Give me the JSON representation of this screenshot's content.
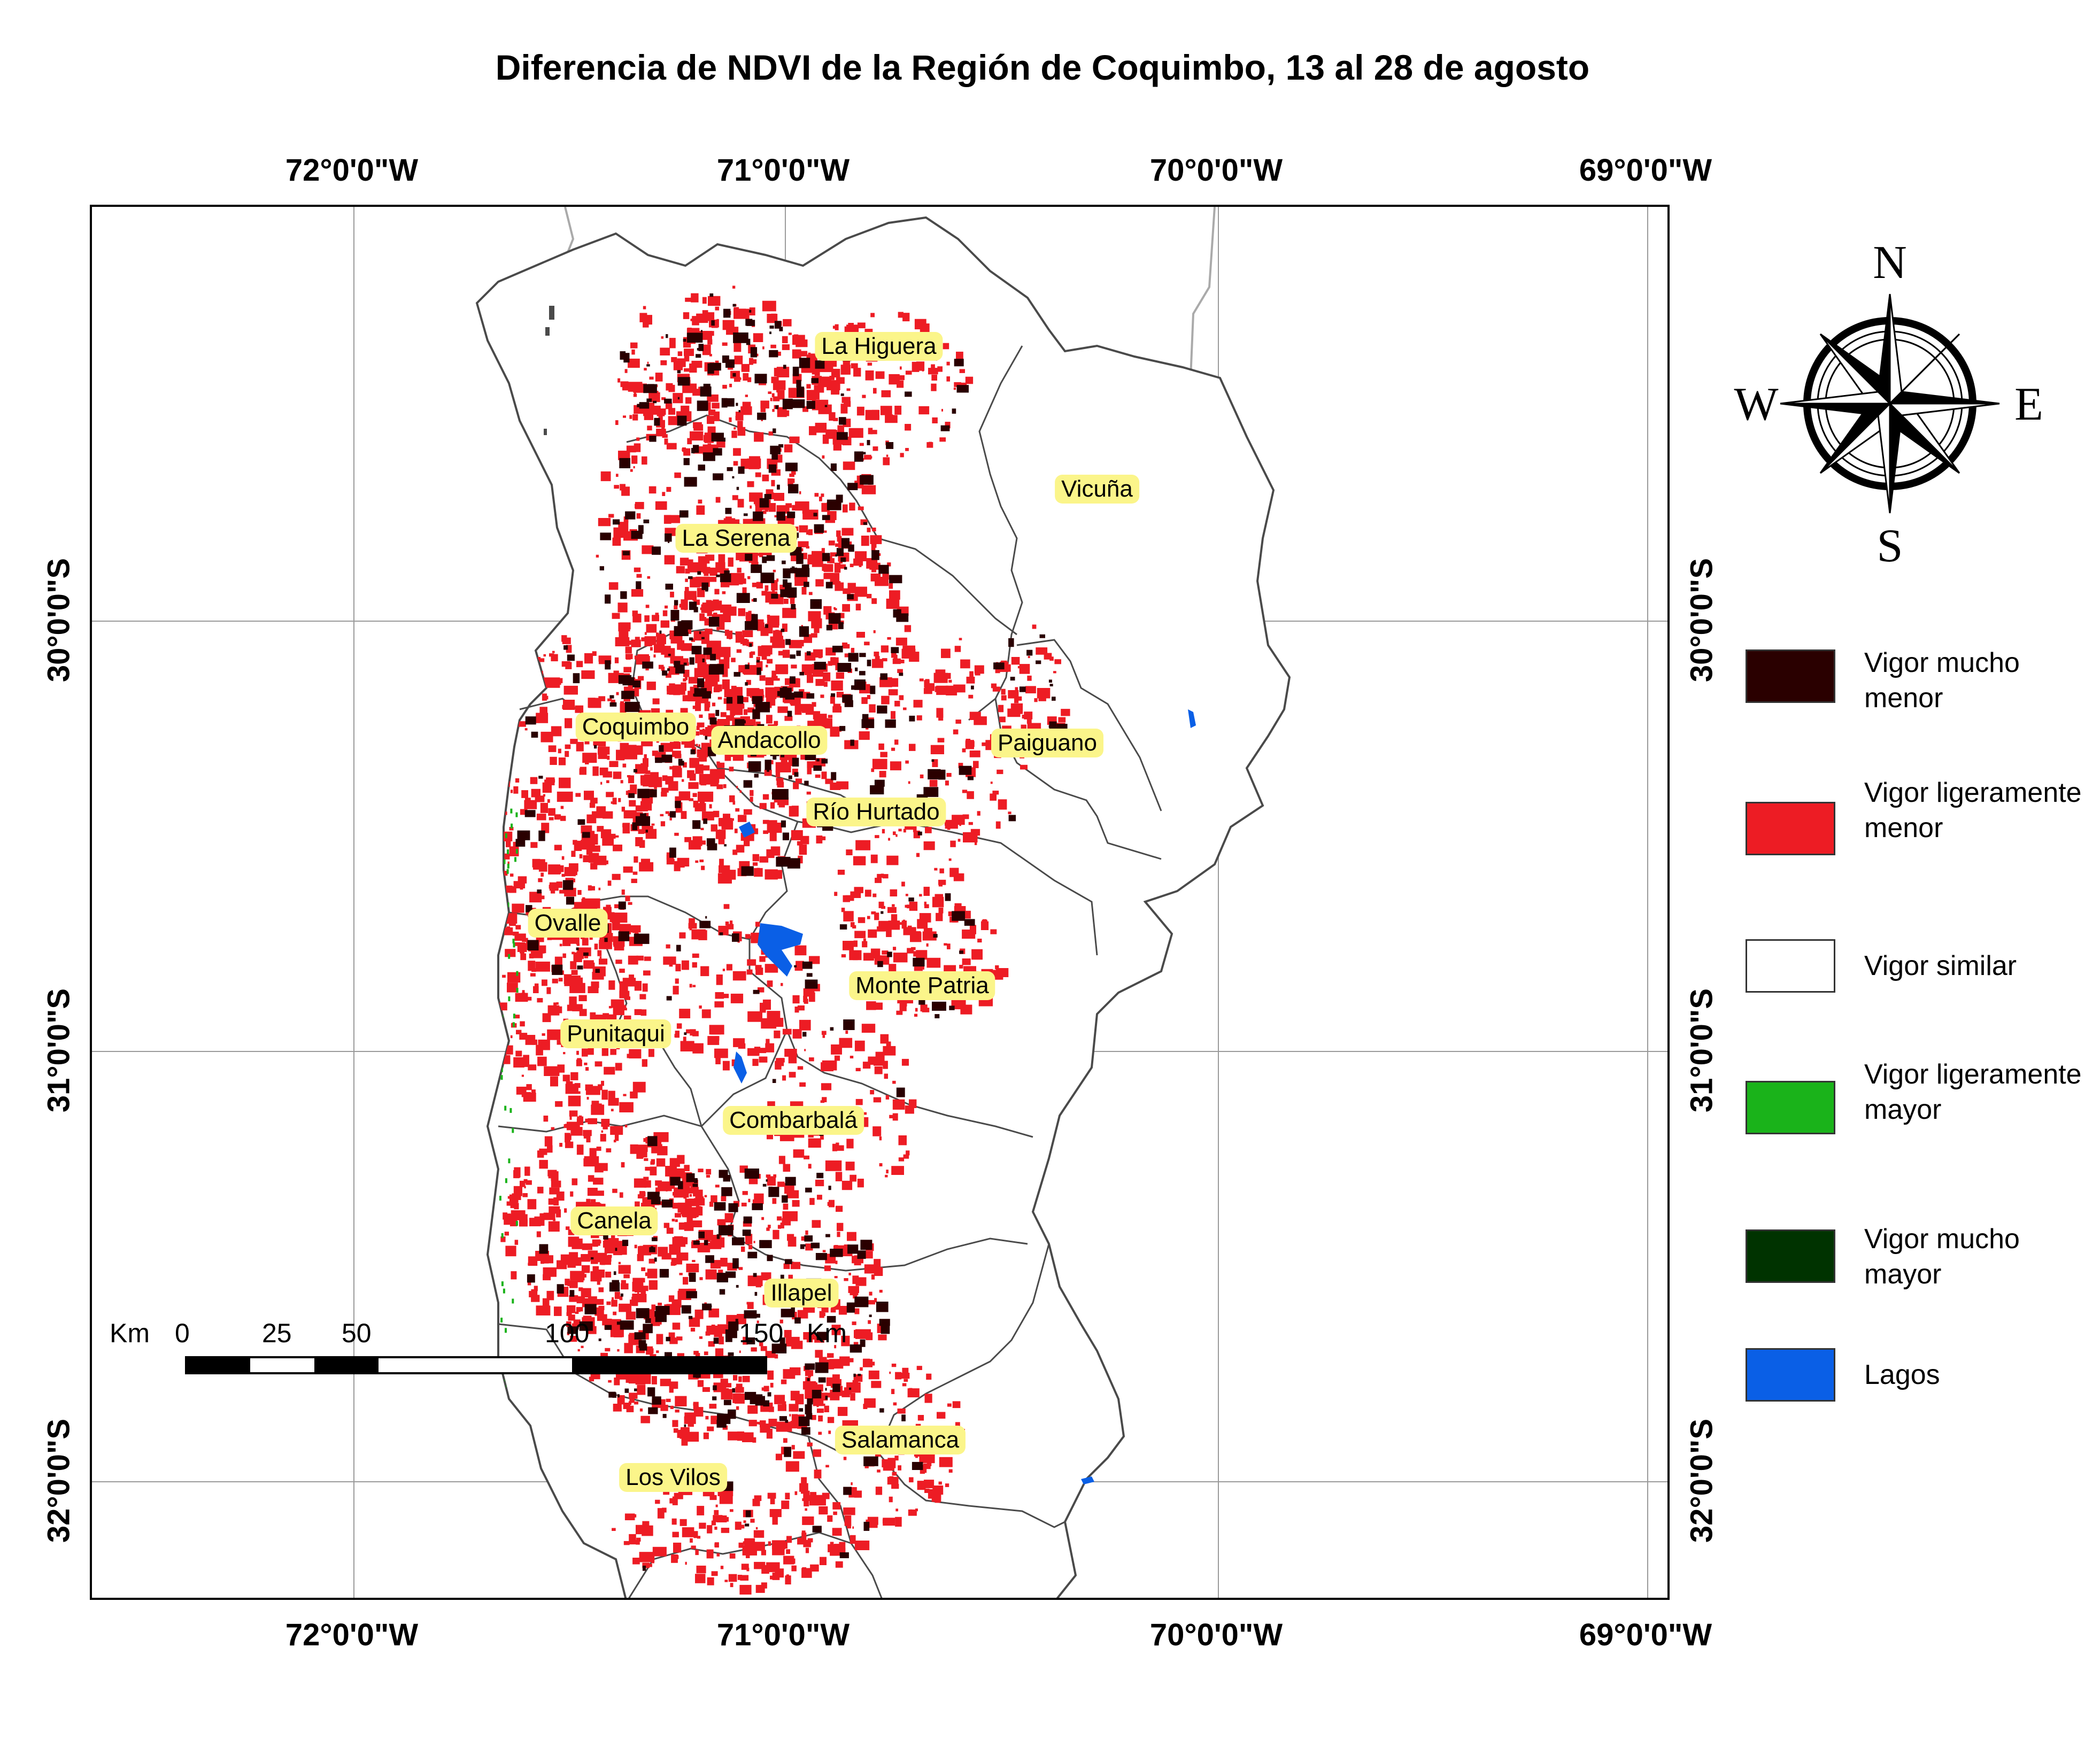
{
  "title": "Diferencia de NDVI de la Región de Coquimbo, 13 al 28 de agosto",
  "longitude_labels": [
    "72°0'0\"W",
    "71°0'0\"W",
    "70°0'0\"W",
    "69°0'0\"W"
  ],
  "latitude_labels": [
    "30°0'0\"S",
    "31°0'0\"S",
    "32°0'0\"S"
  ],
  "comunas": [
    "La Higuera",
    "Vicuña",
    "La Serena",
    "Coquimbo",
    "Andacollo",
    "Paiguano",
    "Río Hurtado",
    "Ovalle",
    "Monte Patria",
    "Punitaqui",
    "Combarbalá",
    "Canela",
    "Illapel",
    "Salamanca",
    "Los Vilos"
  ],
  "scale_bar": {
    "unit_left": "Km",
    "ticks": [
      "0",
      "25",
      "50",
      "100",
      "150"
    ],
    "unit_right": "Km"
  },
  "compass": {
    "n": "N",
    "s": "S",
    "e": "E",
    "w": "W"
  },
  "legend": [
    {
      "label": "Vigor mucho menor",
      "color": "#2a0000"
    },
    {
      "label": "Vigor ligeramente menor",
      "color": "#ed1c24"
    },
    {
      "label": "Vigor similar",
      "color": "#ffffff"
    },
    {
      "label": "Vigor ligeramente mayor",
      "color": "#1ab31a"
    },
    {
      "label": "Vigor mucho mayor",
      "color": "#003300"
    },
    {
      "label": "Lagos",
      "color": "#0a5fe6"
    }
  ]
}
